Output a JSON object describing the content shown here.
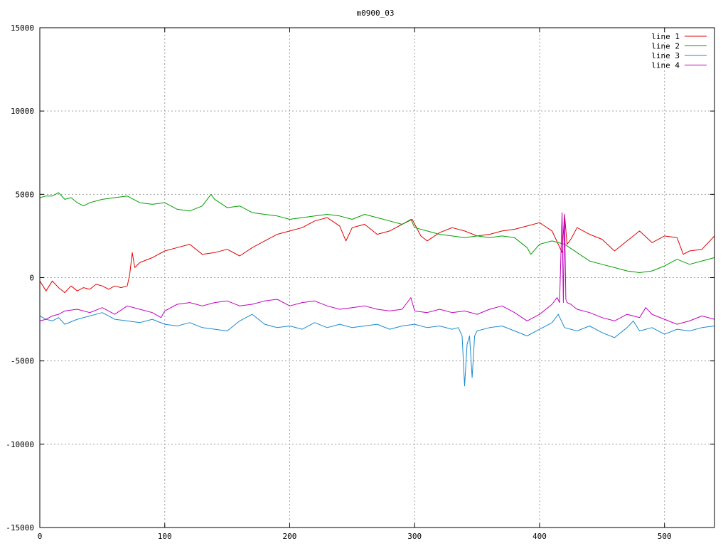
{
  "chart_data": {
    "type": "line",
    "title": "m0900_03",
    "xlabel": "",
    "ylabel": "",
    "xlim": [
      0,
      540
    ],
    "ylim": [
      -15000,
      15000
    ],
    "xticks": [
      0,
      100,
      200,
      300,
      400,
      500
    ],
    "yticks": [
      -15000,
      -10000,
      -5000,
      0,
      5000,
      10000,
      15000
    ],
    "xtick_labels": [
      "0",
      "100",
      "200",
      "300",
      "400",
      "500"
    ],
    "ytick_labels": [
      "-15000",
      "-10000",
      "-5000",
      "0",
      "5000",
      "10000",
      "15000"
    ],
    "grid": true,
    "legend_position": "top-right",
    "series": [
      {
        "name": "line 1",
        "color": "#e00000",
        "x": [
          0,
          5,
          10,
          15,
          20,
          25,
          30,
          35,
          40,
          45,
          50,
          55,
          60,
          65,
          70,
          72,
          74,
          76,
          80,
          90,
          100,
          110,
          120,
          130,
          140,
          150,
          160,
          170,
          180,
          190,
          200,
          210,
          220,
          230,
          240,
          245,
          250,
          260,
          270,
          280,
          290,
          298,
          305,
          310,
          320,
          330,
          340,
          350,
          360,
          370,
          380,
          390,
          400,
          410,
          415,
          418,
          420,
          422,
          425,
          430,
          440,
          450,
          460,
          470,
          480,
          490,
          500,
          510,
          515,
          520,
          530,
          540
        ],
        "y": [
          -200,
          -800,
          -200,
          -600,
          -900,
          -500,
          -800,
          -600,
          -700,
          -400,
          -500,
          -700,
          -500,
          -600,
          -500,
          200,
          1500,
          600,
          900,
          1200,
          1600,
          1800,
          2000,
          1400,
          1500,
          1700,
          1300,
          1800,
          2200,
          2600,
          2800,
          3000,
          3400,
          3600,
          3100,
          2200,
          3000,
          3200,
          2600,
          2800,
          3200,
          3500,
          2500,
          2200,
          2700,
          3000,
          2800,
          2500,
          2600,
          2800,
          2900,
          3100,
          3300,
          2800,
          2000,
          1500,
          3800,
          2000,
          2300,
          3000,
          2600,
          2300,
          1600,
          2200,
          2800,
          2100,
          2500,
          2400,
          1400,
          1600,
          1700,
          2500
        ]
      },
      {
        "name": "line 2",
        "color": "#00a000",
        "x": [
          0,
          5,
          10,
          15,
          20,
          25,
          30,
          35,
          40,
          50,
          60,
          70,
          80,
          90,
          100,
          110,
          120,
          130,
          137,
          140,
          150,
          160,
          170,
          180,
          190,
          200,
          210,
          220,
          230,
          240,
          250,
          260,
          270,
          280,
          290,
          297,
          300,
          310,
          320,
          330,
          340,
          350,
          360,
          370,
          380,
          390,
          393,
          400,
          410,
          420,
          430,
          440,
          450,
          460,
          470,
          480,
          490,
          500,
          510,
          520,
          530,
          540
        ],
        "y": [
          4800,
          4900,
          4900,
          5100,
          4700,
          4800,
          4500,
          4300,
          4500,
          4700,
          4800,
          4900,
          4500,
          4400,
          4500,
          4100,
          4000,
          4300,
          5000,
          4700,
          4200,
          4300,
          3900,
          3800,
          3700,
          3500,
          3600,
          3700,
          3800,
          3700,
          3500,
          3800,
          3600,
          3400,
          3200,
          3500,
          3000,
          2800,
          2600,
          2500,
          2400,
          2500,
          2400,
          2500,
          2400,
          1800,
          1400,
          2000,
          2200,
          2000,
          1500,
          1000,
          800,
          600,
          400,
          300,
          400,
          700,
          1100,
          800,
          1000,
          1200
        ]
      },
      {
        "name": "line 3",
        "color": "#1a8ad0",
        "x": [
          0,
          5,
          10,
          15,
          20,
          30,
          40,
          50,
          60,
          70,
          80,
          90,
          100,
          110,
          120,
          130,
          140,
          150,
          160,
          170,
          180,
          190,
          200,
          210,
          220,
          230,
          240,
          250,
          260,
          270,
          280,
          290,
          300,
          310,
          320,
          330,
          335,
          338,
          340,
          342,
          344,
          346,
          348,
          350,
          360,
          370,
          380,
          390,
          400,
          410,
          415,
          420,
          430,
          440,
          450,
          460,
          470,
          475,
          480,
          490,
          500,
          510,
          520,
          530,
          540
        ],
        "y": [
          -2300,
          -2500,
          -2600,
          -2400,
          -2800,
          -2500,
          -2300,
          -2100,
          -2500,
          -2600,
          -2700,
          -2500,
          -2800,
          -2900,
          -2700,
          -3000,
          -3100,
          -3200,
          -2600,
          -2200,
          -2800,
          -3000,
          -2900,
          -3100,
          -2700,
          -3000,
          -2800,
          -3000,
          -2900,
          -2800,
          -3100,
          -2900,
          -2800,
          -3000,
          -2900,
          -3100,
          -3000,
          -3500,
          -6500,
          -4000,
          -3500,
          -6000,
          -3500,
          -3200,
          -3000,
          -2900,
          -3200,
          -3500,
          -3100,
          -2700,
          -2200,
          -3000,
          -3200,
          -2900,
          -3300,
          -3600,
          -3000,
          -2600,
          -3200,
          -3000,
          -3400,
          -3100,
          -3200,
          -3000,
          -2900
        ]
      },
      {
        "name": "line 4",
        "color": "#c000c0",
        "x": [
          0,
          5,
          10,
          15,
          20,
          30,
          40,
          50,
          60,
          70,
          80,
          90,
          97,
          100,
          110,
          120,
          130,
          140,
          150,
          160,
          170,
          180,
          190,
          200,
          210,
          220,
          230,
          240,
          250,
          260,
          270,
          280,
          290,
          297,
          300,
          310,
          320,
          330,
          340,
          350,
          360,
          370,
          380,
          390,
          400,
          410,
          414,
          416,
          418,
          419,
          420,
          421,
          422,
          425,
          430,
          440,
          450,
          460,
          470,
          480,
          485,
          490,
          500,
          510,
          520,
          530,
          540
        ],
        "y": [
          -2600,
          -2500,
          -2300,
          -2200,
          -2000,
          -1900,
          -2100,
          -1800,
          -2200,
          -1700,
          -1900,
          -2100,
          -2400,
          -2000,
          -1600,
          -1500,
          -1700,
          -1500,
          -1400,
          -1700,
          -1600,
          -1400,
          -1300,
          -1700,
          -1500,
          -1400,
          -1700,
          -1900,
          -1800,
          -1700,
          -1900,
          -2000,
          -1900,
          -1200,
          -2000,
          -2100,
          -1900,
          -2100,
          -2000,
          -2200,
          -1900,
          -1700,
          -2100,
          -2600,
          -2200,
          -1600,
          -1200,
          -1500,
          3900,
          -1500,
          3800,
          -1300,
          -1500,
          -1600,
          -1900,
          -2100,
          -2400,
          -2600,
          -2200,
          -2400,
          -1800,
          -2200,
          -2500,
          -2800,
          -2600,
          -2300,
          -2500
        ]
      }
    ]
  }
}
